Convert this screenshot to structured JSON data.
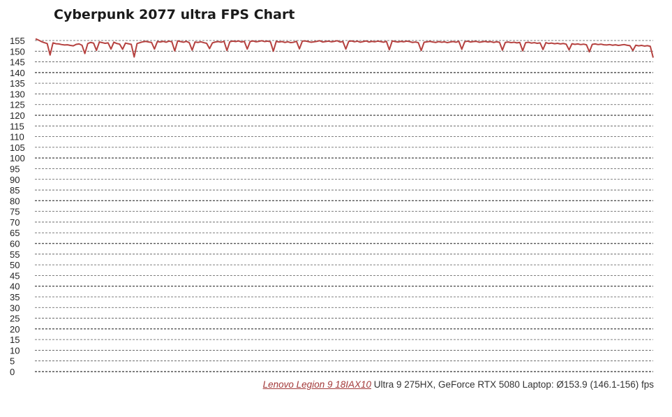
{
  "title": "Cyberpunk 2077 ultra FPS Chart",
  "legend": {
    "device_link": "Lenovo Legion 9 18IAX10",
    "spec_text": " Ultra 9 275HX, GeForce RTX 5080 Laptop: Ø153.9 (146.1-156) fps"
  },
  "colors": {
    "series": "#b5413f",
    "grid": "#555555",
    "legend_link": "#a33a3a"
  },
  "chart_data": {
    "type": "line",
    "title": "Cyberpunk 2077 ultra FPS Chart",
    "xlabel": "",
    "ylabel": "",
    "ylim": [
      0,
      155
    ],
    "yticks": [
      0,
      5,
      10,
      15,
      20,
      25,
      30,
      35,
      40,
      45,
      50,
      55,
      60,
      65,
      70,
      75,
      80,
      85,
      90,
      95,
      100,
      105,
      110,
      115,
      120,
      125,
      130,
      135,
      140,
      145,
      150,
      155
    ],
    "grid": true,
    "legend_position": "bottom-right",
    "series": [
      {
        "name": "Lenovo Legion 9 18IAX10 Ultra 9 275HX, GeForce RTX 5080 Laptop",
        "average": 153.9,
        "min": 146.1,
        "max": 156,
        "values": [
          155.8,
          155.2,
          154.5,
          154.0,
          153.6,
          148.2,
          153.9,
          153.5,
          153.4,
          153.1,
          152.9,
          153.0,
          152.7,
          152.5,
          153.2,
          153.4,
          152.8,
          148.9,
          153.6,
          154.1,
          153.8,
          150.4,
          154.3,
          154.0,
          153.7,
          153.9,
          151.0,
          154.2,
          153.6,
          153.3,
          150.9,
          153.8,
          153.5,
          153.2,
          147.3,
          153.6,
          154.0,
          154.4,
          154.6,
          154.3,
          154.1,
          151.0,
          154.5,
          154.3,
          154.6,
          154.2,
          154.7,
          154.4,
          150.1,
          154.8,
          154.5,
          154.2,
          154.6,
          154.0,
          150.5,
          154.3,
          154.1,
          154.4,
          154.0,
          153.7,
          151.2,
          153.9,
          154.3,
          154.5,
          154.2,
          154.6,
          150.3,
          154.4,
          154.7,
          154.5,
          154.8,
          154.3,
          154.6,
          151.0,
          154.5,
          154.8,
          154.4,
          154.6,
          154.9,
          154.5,
          154.7,
          154.4,
          150.0,
          154.6,
          154.3,
          154.5,
          154.1,
          154.4,
          154.0,
          154.2,
          154.6,
          151.1,
          154.7,
          154.8,
          154.5,
          154.2,
          154.4,
          154.6,
          154.9,
          154.3,
          154.5,
          154.7,
          154.4,
          154.6,
          154.9,
          154.3,
          154.5,
          151.0,
          154.6,
          154.8,
          154.4,
          154.7,
          154.2,
          154.5,
          154.8,
          154.3,
          154.6,
          154.4,
          154.7,
          154.5,
          154.2,
          154.6,
          150.7,
          154.8,
          154.5,
          154.3,
          154.6,
          154.4,
          154.7,
          154.5,
          154.1,
          154.3,
          154.0,
          150.3,
          154.2,
          154.4,
          154.6,
          154.3,
          154.1,
          154.5,
          154.2,
          154.4,
          154.0,
          154.3,
          154.5,
          154.2,
          154.6,
          150.9,
          154.4,
          154.7,
          154.3,
          154.5,
          154.6,
          154.2,
          154.4,
          154.6,
          154.3,
          154.5,
          154.1,
          154.4,
          154.2,
          150.5,
          154.1,
          154.3,
          154.0,
          154.2,
          153.9,
          154.1,
          150.2,
          154.0,
          154.2,
          153.8,
          154.0,
          153.7,
          153.9,
          150.8,
          154.0,
          153.6,
          153.8,
          153.5,
          153.7,
          153.4,
          153.6,
          153.3,
          150.6,
          153.5,
          153.2,
          153.4,
          153.1,
          153.3,
          153.0,
          149.7,
          153.2,
          153.4,
          153.1,
          153.3,
          153.0,
          152.9,
          153.1,
          152.8,
          153.0,
          152.7,
          152.9,
          153.1,
          152.8,
          152.6,
          150.3,
          152.8,
          152.5,
          152.7,
          152.4,
          152.6,
          152.3,
          147.0
        ]
      }
    ]
  }
}
